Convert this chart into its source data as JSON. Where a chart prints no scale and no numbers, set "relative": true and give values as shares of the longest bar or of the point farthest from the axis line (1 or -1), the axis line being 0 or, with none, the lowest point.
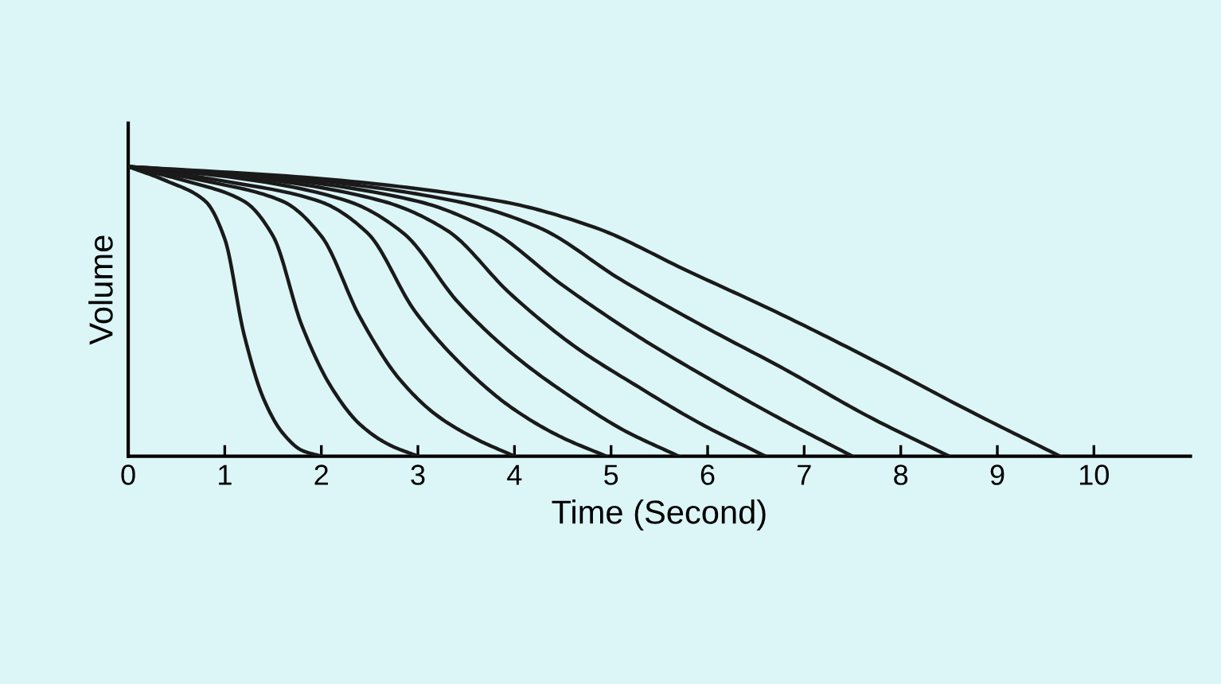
{
  "chart_data": {
    "type": "line",
    "xlabel": "Time (Second)",
    "ylabel": "Volume",
    "relative": true,
    "xlim": [
      0,
      11
    ],
    "xticks": [
      0,
      1,
      2,
      3,
      4,
      5,
      6,
      7,
      8,
      9,
      10
    ],
    "grid": false,
    "marker": "none",
    "line_style": "solid",
    "series": [
      {
        "color": "#1a1a1a",
        "x": [
          0,
          0.4,
          0.8,
          1,
          1.2,
          1.4,
          1.6,
          1.8,
          2
        ],
        "values": [
          1,
          0.95,
          0.88,
          0.75,
          0.42,
          0.2,
          0.08,
          0.02,
          0
        ]
      },
      {
        "color": "#1a1a1a",
        "x": [
          0,
          0.6,
          1.2,
          1.5,
          1.8,
          2.1,
          2.4,
          2.7,
          3
        ],
        "values": [
          1,
          0.95,
          0.88,
          0.76,
          0.45,
          0.24,
          0.11,
          0.04,
          0
        ]
      },
      {
        "color": "#1a1a1a",
        "x": [
          0,
          0.8,
          1.6,
          2,
          2.4,
          2.8,
          3.2,
          3.6,
          4
        ],
        "values": [
          1,
          0.95,
          0.88,
          0.76,
          0.48,
          0.27,
          0.14,
          0.06,
          0
        ]
      },
      {
        "color": "#1a1a1a",
        "x": [
          0,
          0.99,
          1.98,
          2.48,
          2.97,
          3.47,
          3.96,
          4.46,
          4.95
        ],
        "values": [
          1,
          0.95,
          0.88,
          0.77,
          0.5,
          0.31,
          0.17,
          0.07,
          0
        ]
      },
      {
        "color": "#1a1a1a",
        "x": [
          0,
          1.14,
          2.28,
          2.85,
          3.42,
          3.99,
          4.56,
          5.13,
          5.7
        ],
        "values": [
          1,
          0.96,
          0.88,
          0.77,
          0.53,
          0.35,
          0.21,
          0.09,
          0
        ]
      },
      {
        "color": "#1a1a1a",
        "x": [
          0,
          1.32,
          2.64,
          3.3,
          3.96,
          4.62,
          5.28,
          5.94,
          6.6
        ],
        "values": [
          1,
          0.96,
          0.88,
          0.78,
          0.56,
          0.38,
          0.24,
          0.11,
          0
        ]
      },
      {
        "color": "#1a1a1a",
        "x": [
          0,
          1.5,
          3,
          3.75,
          4.5,
          5.25,
          6,
          6.75,
          7.5
        ],
        "values": [
          1,
          0.96,
          0.88,
          0.78,
          0.59,
          0.42,
          0.27,
          0.13,
          0
        ]
      },
      {
        "color": "#1a1a1a",
        "x": [
          0,
          1.7,
          3.4,
          4.25,
          5.1,
          5.95,
          6.8,
          7.65,
          8.5
        ],
        "values": [
          1,
          0.96,
          0.88,
          0.79,
          0.61,
          0.45,
          0.3,
          0.14,
          0
        ]
      },
      {
        "color": "#1a1a1a",
        "x": [
          0,
          1.93,
          3.86,
          4.83,
          5.79,
          6.76,
          7.72,
          8.69,
          9.65
        ],
        "values": [
          1,
          0.96,
          0.88,
          0.79,
          0.64,
          0.49,
          0.33,
          0.16,
          0
        ]
      }
    ]
  }
}
